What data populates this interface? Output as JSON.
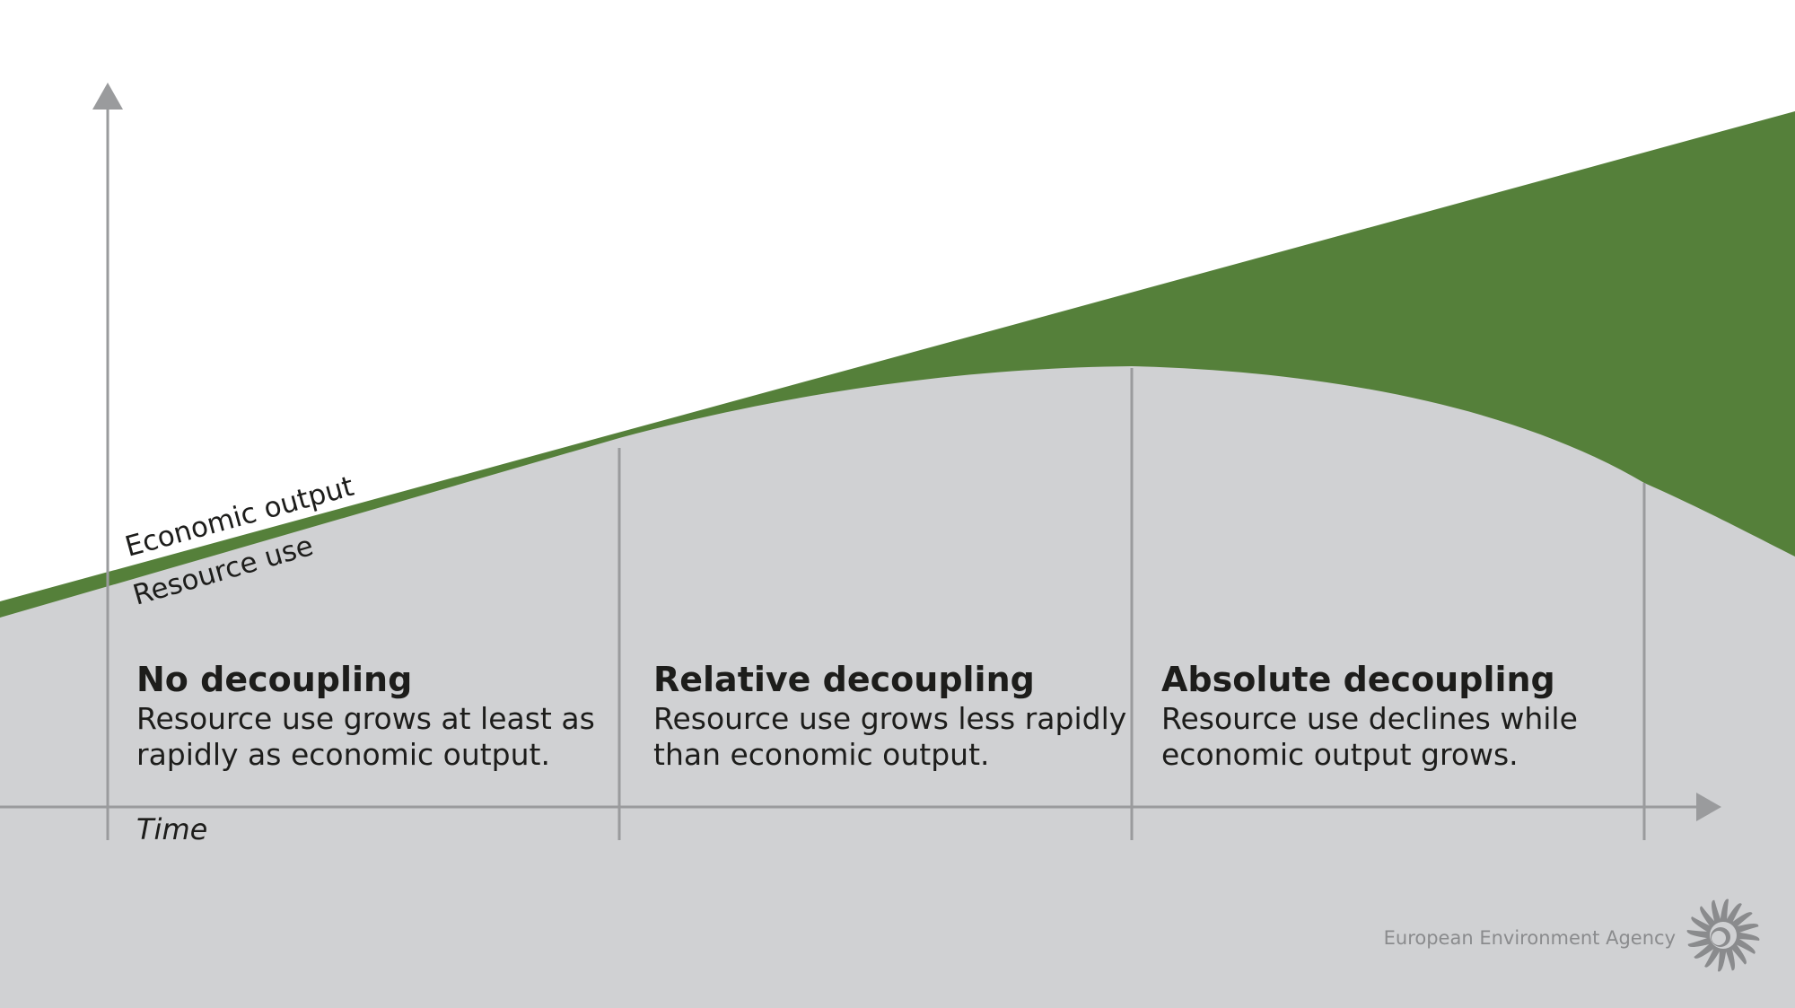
{
  "diagram": {
    "curves": {
      "economic_output_label": "Economic output",
      "resource_use_label": "Resource use"
    },
    "axis": {
      "x_label": "Time"
    },
    "stages": [
      {
        "heading": "No decoupling",
        "description_lines": [
          "Resource use grows at least as",
          "rapidly as economic output."
        ]
      },
      {
        "heading": "Relative decoupling",
        "description_lines": [
          "Resource use grows less rapidly",
          "than economic output."
        ]
      },
      {
        "heading": "Absolute decoupling",
        "description_lines": [
          "Resource use declines while",
          "economic output grows."
        ]
      }
    ],
    "colors": {
      "background": "#ffffff",
      "decoupling_gap": "#55803a",
      "resource_area": "#d0d1d3",
      "axis": "#9a9b9d"
    }
  },
  "footer": {
    "agency_name": "European Environment Agency",
    "logo_icon": "eea-sunflower-logo"
  }
}
